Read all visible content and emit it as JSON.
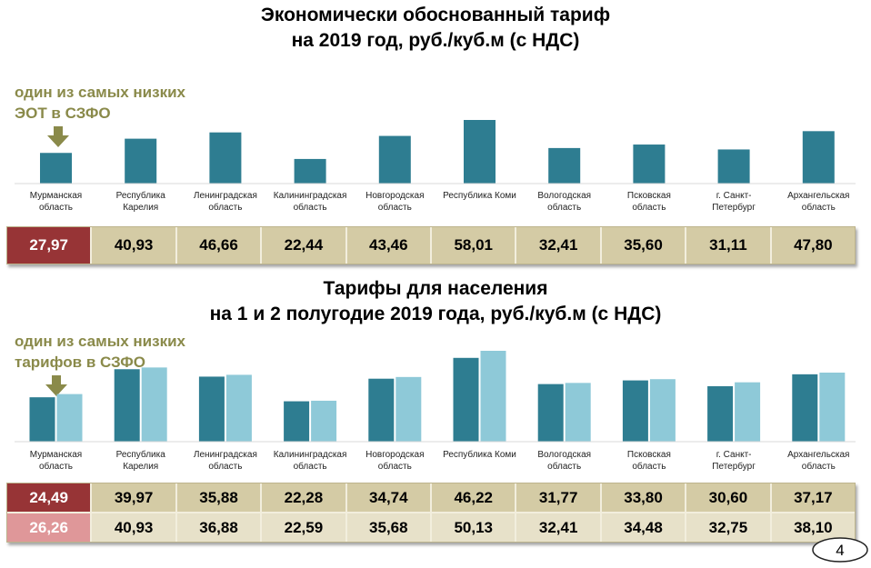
{
  "colors": {
    "bar_dark": "#2e7d91",
    "bar_light": "#8ec9d8",
    "highlight": "#973436",
    "highlight_light": "#df9799",
    "table_bg": "#d4cba5",
    "note_color": "#8a8a4a"
  },
  "title1": [
    "Экономически обоснованный тариф",
    "на 2019 год, руб./куб.м (с НДС)"
  ],
  "note1": [
    "один из самых низких",
    "ЭОТ в СЗФО"
  ],
  "title2": [
    "Тарифы для населения",
    "на 1 и 2 полугодие 2019 года, руб./куб.м (с НДС)"
  ],
  "note2": [
    "один из самых низких",
    "тарифов в СЗФО"
  ],
  "page_number": "4",
  "chart_data": [
    {
      "type": "bar",
      "title": "Экономически обоснованный тариф на 2019 год, руб./куб.м (с НДС)",
      "categories": [
        [
          "Мурманская",
          "область"
        ],
        [
          "Республика",
          "Карелия"
        ],
        [
          "Ленинградская",
          "область"
        ],
        [
          "Калининградская",
          "область"
        ],
        [
          "Новгородская",
          "область"
        ],
        [
          "Республика Коми"
        ],
        [
          "Вологодская",
          "область"
        ],
        [
          "Псковская",
          "область"
        ],
        [
          "г. Санкт-",
          "Петербург"
        ],
        [
          "Архангельская",
          "область"
        ]
      ],
      "values": [
        27.97,
        40.93,
        46.66,
        22.44,
        43.46,
        58.01,
        32.41,
        35.6,
        31.11,
        47.8
      ],
      "value_labels": [
        "27,97",
        "40,93",
        "46,66",
        "22,44",
        "43,46",
        "58,01",
        "32,41",
        "35,60",
        "31,11",
        "47,80"
      ]
    },
    {
      "type": "bar",
      "title": "Тарифы для населения на 1 и 2 полугодие 2019 года, руб./куб.м (с НДС)",
      "categories": [
        [
          "Мурманская",
          "область"
        ],
        [
          "Республика",
          "Карелия"
        ],
        [
          "Ленинградская",
          "область"
        ],
        [
          "Калининградская",
          "область"
        ],
        [
          "Новгородская",
          "область"
        ],
        [
          "Республика Коми"
        ],
        [
          "Вологодская",
          "область"
        ],
        [
          "Псковская",
          "область"
        ],
        [
          "г. Санкт-",
          "Петербург"
        ],
        [
          "Архангельская",
          "область"
        ]
      ],
      "series": [
        {
          "values": [
            24.49,
            39.97,
            35.88,
            22.28,
            34.74,
            46.22,
            31.77,
            33.8,
            30.6,
            37.17
          ],
          "value_labels": [
            "24,49",
            "39,97",
            "35,88",
            "22,28",
            "34,74",
            "46,22",
            "31,77",
            "33,80",
            "30,60",
            "37,17"
          ]
        },
        {
          "values": [
            26.26,
            40.93,
            36.88,
            22.59,
            35.68,
            50.13,
            32.41,
            34.48,
            32.75,
            38.1
          ],
          "value_labels": [
            "26,26",
            "40,93",
            "36,88",
            "22,59",
            "35,68",
            "50,13",
            "32,41",
            "34,48",
            "32,75",
            "38,10"
          ]
        }
      ]
    }
  ]
}
